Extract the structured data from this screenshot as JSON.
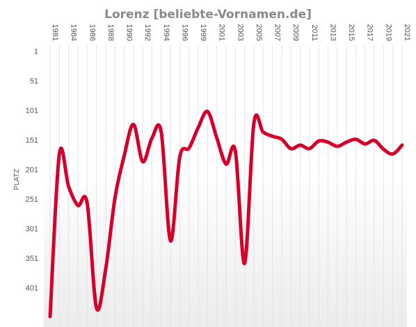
{
  "chart_data": {
    "type": "line",
    "title": "Lorenz [beliebte-Vornamen.de]",
    "ylabel": "PLATZ",
    "xlabel": "",
    "x_tick_labels": [
      "1981",
      "1984",
      "1986",
      "1988",
      "1990",
      "1992",
      "1994",
      "1996",
      "1999",
      "2001",
      "2003",
      "2005",
      "2007",
      "2009",
      "2011",
      "2013",
      "2015",
      "2017",
      "2019",
      "2021"
    ],
    "y_tick_labels": [
      "1",
      "51",
      "101",
      "151",
      "201",
      "251",
      "301",
      "351",
      "401"
    ],
    "y_ticks": [
      1,
      51,
      101,
      151,
      201,
      251,
      301,
      351,
      401
    ],
    "ylim": [
      1,
      450
    ],
    "y_inverted": true,
    "grid": {
      "vertical": true,
      "horizontal": false
    },
    "line_color": "#d4002a",
    "series": [
      {
        "values": [
          450,
          175,
          230,
          262,
          258,
          435,
          370,
          250,
          178,
          125,
          188,
          148,
          138,
          322,
          180,
          165,
          130,
          103,
          148,
          192,
          170,
          360,
          123,
          138,
          145,
          150,
          166,
          160,
          166,
          153,
          155,
          162,
          155,
          150,
          158,
          152,
          167,
          175,
          160
        ]
      }
    ]
  }
}
